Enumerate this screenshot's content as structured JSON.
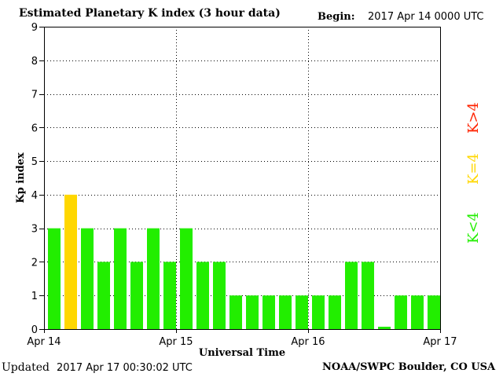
{
  "header": {
    "title": "Estimated Planetary K index (3 hour data)",
    "begin_label": "Begin:",
    "begin_value": "2017 Apr 14 0000 UTC"
  },
  "footer": {
    "updated_label": "Updated",
    "updated_value": "2017 Apr 17 00:30:02 UTC",
    "credit": "NOAA/SWPC Boulder, CO USA"
  },
  "legend": [
    {
      "label": "K>4",
      "color": "#ff2200"
    },
    {
      "label": "K=4",
      "color": "#ffd700"
    },
    {
      "label": "K<4",
      "color": "#22ee00"
    }
  ],
  "chart_data": {
    "type": "bar",
    "title": "Estimated Planetary K index (3 hour data)",
    "xlabel": "Universal Time",
    "ylabel": "Kp index",
    "ylim": [
      0,
      9
    ],
    "yticks": [
      "0",
      "1",
      "2",
      "3",
      "4",
      "5",
      "6",
      "7",
      "8",
      "9"
    ],
    "xticks": [
      "Apr 14",
      "Apr 15",
      "Apr 16",
      "Apr 17"
    ],
    "grid": true,
    "values": [
      3,
      4,
      3,
      2,
      3,
      2,
      3,
      2,
      3,
      2,
      2,
      1,
      1,
      1,
      1,
      1,
      1,
      1,
      2,
      2,
      0.07,
      1,
      1,
      1
    ],
    "colors": {
      "below": "#22ee00",
      "equal": "#ffd700",
      "above": "#ff2200"
    }
  }
}
